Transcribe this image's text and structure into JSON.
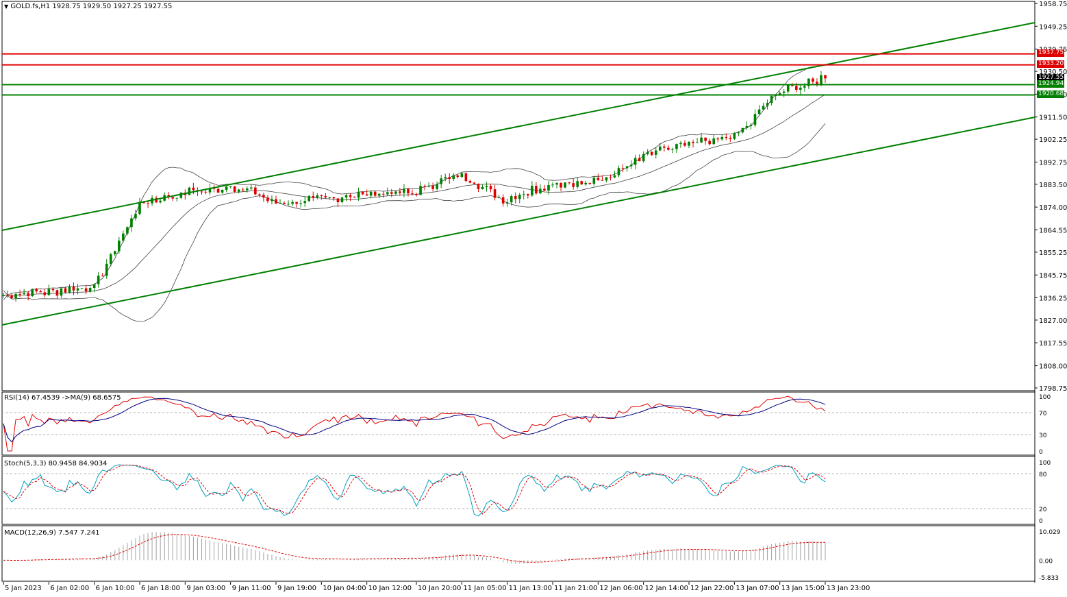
{
  "header": {
    "menu_glyph": "▼",
    "symbol_info": "GOLD.fs,H1  1928.75 1929.50 1927.25 1927.55"
  },
  "price_axis": {
    "ticks": [
      "1958.75",
      "1949.25",
      "1939.75",
      "1930.50",
      "1921.00",
      "1911.50",
      "1902.25",
      "1892.75",
      "1883.50",
      "1874.00",
      "1864.55",
      "1855.25",
      "1845.75",
      "1836.25",
      "1827.00",
      "1817.55",
      "1808.00",
      "1798.75"
    ],
    "tick_values": [
      1958.75,
      1949.25,
      1939.75,
      1930.5,
      1921.0,
      1911.5,
      1902.25,
      1892.75,
      1883.5,
      1874.0,
      1864.55,
      1855.25,
      1845.75,
      1836.25,
      1827.0,
      1817.55,
      1808.0,
      1798.75
    ]
  },
  "levels": {
    "resistance": [
      {
        "label": "1937.75",
        "value": 1937.75,
        "color": "#e00000"
      },
      {
        "label": "1933.20",
        "value": 1933.2,
        "color": "#e00000"
      }
    ],
    "support": [
      {
        "label": "1924.94",
        "value": 1924.94,
        "color": "#008000"
      },
      {
        "label": "1920.68",
        "value": 1920.68,
        "color": "#008000"
      }
    ],
    "current": {
      "label": "1927.55",
      "value": 1927.55,
      "color": "#000000"
    }
  },
  "time_axis": [
    "5 Jan 2023",
    "6 Jan 02:00",
    "6 Jan 10:00",
    "6 Jan 18:00",
    "9 Jan 03:00",
    "9 Jan 11:00",
    "9 Jan 19:00",
    "10 Jan 04:00",
    "10 Jan 12:00",
    "10 Jan 20:00",
    "11 Jan 05:00",
    "11 Jan 13:00",
    "11 Jan 21:00",
    "12 Jan 06:00",
    "12 Jan 14:00",
    "12 Jan 22:00",
    "13 Jan 07:00",
    "13 Jan 15:00",
    "13 Jan 23:00"
  ],
  "rsi": {
    "title": "RSI(14) 67.4539  ->MA(9) 68.6575",
    "ticks": [
      "100",
      "70",
      "30",
      "0"
    ],
    "tick_values": [
      100,
      70,
      30,
      0
    ]
  },
  "stoch": {
    "title": "Stoch(5,3,3) 80.9458 84.9034",
    "ticks": [
      "100",
      "80",
      "20",
      "0"
    ],
    "tick_values": [
      100,
      80,
      20,
      0
    ]
  },
  "macd": {
    "title": "MACD(12,26,9) 7.547 7.241",
    "ticks": [
      "10.029",
      "0.00",
      "-5.833"
    ],
    "tick_values": [
      10.029,
      0,
      -5.833
    ]
  },
  "colors": {
    "bull": "#008000",
    "bear": "#e00000",
    "channel": "#008000",
    "bands": "#404040",
    "rsi_line": "#e00000",
    "rsi_ma": "#000080",
    "stoch_main": "#00a0c0",
    "stoch_signal": "#e00000",
    "macd_hist": "#a0a0a0",
    "macd_signal": "#e00000"
  },
  "chart_data": {
    "type": "candlestick",
    "symbol": "GOLD.fs",
    "timeframe": "H1",
    "anchors": [
      [
        "5 Jan 2023",
        1838
      ],
      [
        "6 Jan 02:00",
        1839
      ],
      [
        "6 Jan 10:00",
        1841
      ],
      [
        "6 Jan 18:00",
        1876
      ],
      [
        "9 Jan 03:00",
        1880
      ],
      [
        "9 Jan 11:00",
        1883
      ],
      [
        "9 Jan 19:00",
        1876
      ],
      [
        "10 Jan 04:00",
        1877
      ],
      [
        "10 Jan 12:00",
        1880
      ],
      [
        "10 Jan 20:00",
        1880
      ],
      [
        "11 Jan 05:00",
        1888
      ],
      [
        "11 Jan 13:00",
        1877
      ],
      [
        "11 Jan 21:00",
        1884
      ],
      [
        "12 Jan 06:00",
        1884
      ],
      [
        "12 Jan 14:00",
        1896
      ],
      [
        "12 Jan 22:00",
        1900
      ],
      [
        "13 Jan 07:00",
        1903
      ],
      [
        "13 Jan 15:00",
        1922
      ],
      [
        "13 Jan 23:00",
        1928
      ]
    ],
    "last": {
      "open": 1928.75,
      "high": 1929.5,
      "low": 1927.25,
      "close": 1927.55
    },
    "ylim": [
      1798.75,
      1958.75
    ]
  }
}
